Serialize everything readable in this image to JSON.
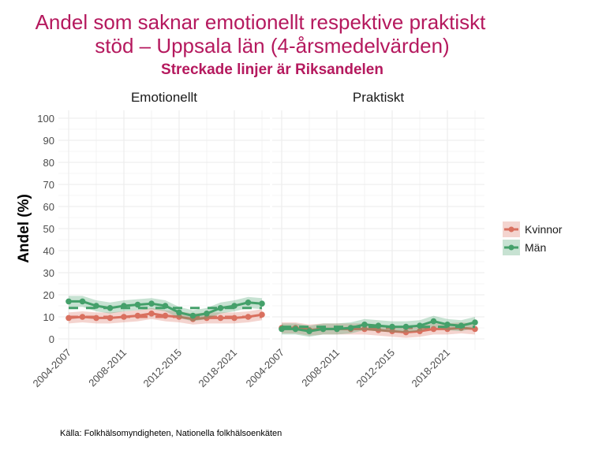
{
  "chart_data": {
    "type": "line",
    "title_line1": "Andel som saknar emotionellt respektive praktiskt",
    "title_line2": "stöd – Uppsala län (4-årsmedelvärden)",
    "subtitle": "Streckade linjer är Riksandelen",
    "ylabel": "Andel (%)",
    "ylim": [
      0,
      100
    ],
    "yticks": [
      "0",
      "10",
      "20",
      "30",
      "40",
      "50",
      "60",
      "70",
      "80",
      "90",
      "100"
    ],
    "xtick_labels": [
      "2004-2007",
      "2008-2011",
      "2012-2015",
      "2018-2021"
    ],
    "xtick_index": [
      0,
      4,
      8,
      12
    ],
    "legend": [
      {
        "name": "Kvinnor",
        "color": "#d9705f"
      },
      {
        "name": "Män",
        "color": "#44a06a"
      }
    ],
    "legend_position": "right",
    "caption": "Källa: Folkhälsomyndigheten, Nationella folkhälsoenkäten",
    "panels": [
      {
        "title": "Emotionellt",
        "series": [
          {
            "name": "Kvinnor",
            "values": [
              9.5,
              10,
              9.5,
              9.5,
              10,
              10.5,
              11.5,
              10.5,
              10,
              9,
              9.5,
              9.5,
              9.5,
              10,
              11
            ],
            "riket": 10
          },
          {
            "name": "Män",
            "values": [
              17,
              17,
              15,
              14,
              15,
              15.5,
              16,
              15,
              12,
              10.5,
              11.5,
              14,
              15,
              16.5,
              16
            ],
            "riket": 14
          }
        ]
      },
      {
        "title": "Praktiskt",
        "series": [
          {
            "name": "Kvinnor",
            "values": [
              5,
              5,
              4,
              4.5,
              4.5,
              4.5,
              4.5,
              4,
              3.5,
              3,
              3.5,
              4.5,
              4.5,
              5,
              4.5
            ],
            "riket": 5
          },
          {
            "name": "Män",
            "values": [
              4.5,
              4.5,
              3.5,
              4.5,
              4.5,
              5,
              6.5,
              6,
              5.5,
              5.5,
              6,
              8,
              6.5,
              6,
              7.5
            ],
            "riket": 5.5
          }
        ]
      }
    ]
  }
}
